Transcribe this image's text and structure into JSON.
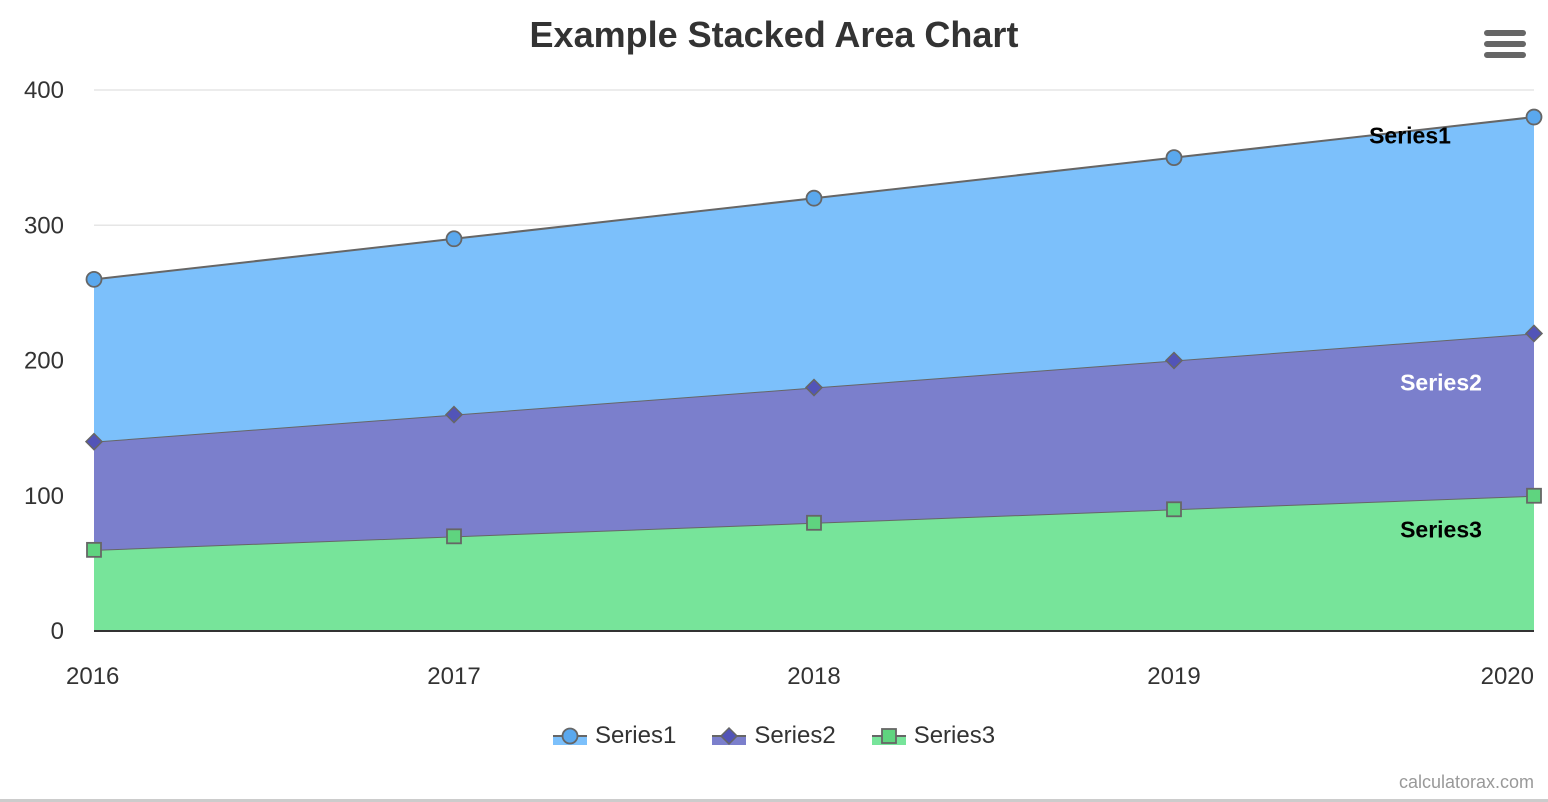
{
  "chart": {
    "title": "Example Stacked Area Chart",
    "credits": "calculatorax.com",
    "menu_icon": "hamburger-menu-icon"
  },
  "colors": {
    "series1": "#7cc0fb",
    "series2": "#7b7fcc",
    "series3": "#77e49a",
    "series1_marker": "#5aa8ee",
    "series2_marker": "#5254b8",
    "series3_marker": "#5fd47f",
    "line": "#666666",
    "grid": "#e6e6e6",
    "axis": "#333333"
  },
  "chart_data": {
    "type": "area",
    "stacked": true,
    "title": "Example Stacked Area Chart",
    "xlabel": "",
    "ylabel": "",
    "categories": [
      "2016",
      "2017",
      "2018",
      "2019",
      "2020"
    ],
    "yticks": [
      0,
      100,
      200,
      300,
      400
    ],
    "ylim": [
      0,
      400
    ],
    "grid": true,
    "legend": "bottom-center",
    "series": [
      {
        "name": "Series1",
        "marker": "circle",
        "values": [
          120,
          130,
          140,
          150,
          160
        ],
        "label": "Series1",
        "label_color": "#000000"
      },
      {
        "name": "Series2",
        "marker": "diamond",
        "values": [
          80,
          90,
          100,
          110,
          120
        ],
        "label": "Series2",
        "label_color": "#ffffff"
      },
      {
        "name": "Series3",
        "marker": "square",
        "values": [
          60,
          70,
          80,
          90,
          100
        ],
        "label": "Series3",
        "label_color": "#000000"
      }
    ]
  }
}
